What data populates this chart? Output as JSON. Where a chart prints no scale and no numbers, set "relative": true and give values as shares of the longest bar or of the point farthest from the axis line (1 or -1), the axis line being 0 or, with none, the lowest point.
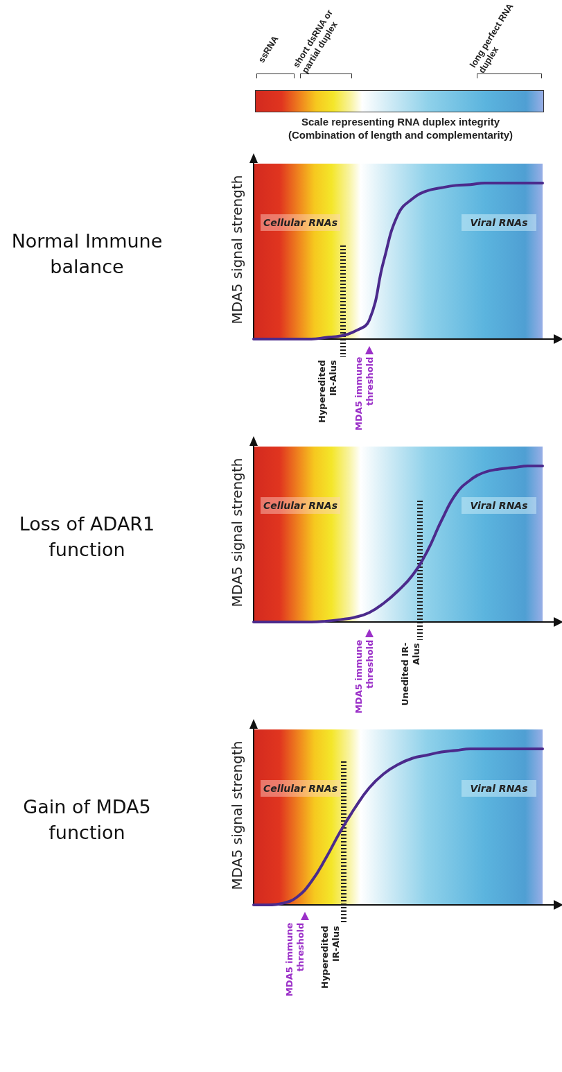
{
  "chart_data": [
    {
      "type": "other",
      "title": "Scale representing RNA duplex integrity",
      "subtitle": "(Combination of length and complementarity)",
      "annotations": [
        "ssRNA",
        "short dsRNA or partial duplex",
        "long perfect RNA duplex"
      ]
    },
    {
      "type": "line",
      "title": "Normal Immune balance",
      "ylabel": "MDA5 signal strength",
      "relative": true,
      "marker": "none",
      "line_style": "solid",
      "categories": [
        null,
        null,
        null,
        null,
        null,
        null,
        null,
        null,
        null,
        null,
        null,
        null,
        null,
        null,
        null,
        null,
        null,
        null,
        null,
        null,
        null
      ],
      "series": [
        {
          "color": "#4b2a8c",
          "values": [
            0,
            0,
            0,
            0,
            0,
            0.01,
            0.02,
            0.05,
            0.12,
            0.5,
            0.8,
            0.9,
            0.95,
            0.97,
            0.985,
            0.99,
            1,
            1,
            1,
            1,
            1
          ]
        }
      ],
      "annotations": [
        "Cellular RNAs",
        "Viral RNAs",
        "Hyperedited IR-Alus",
        "MDA5 immune threshold"
      ]
    },
    {
      "type": "line",
      "title": "Loss of ADAR1 function",
      "ylabel": "MDA5 signal strength",
      "relative": true,
      "marker": "none",
      "line_style": "solid",
      "categories": [
        null,
        null,
        null,
        null,
        null,
        null,
        null,
        null,
        null,
        null,
        null,
        null,
        null,
        null,
        null,
        null,
        null,
        null,
        null,
        null,
        null
      ],
      "series": [
        {
          "color": "#4b2a8c",
          "values": [
            0,
            0,
            0,
            0,
            0,
            0.005,
            0.015,
            0.03,
            0.06,
            0.12,
            0.2,
            0.3,
            0.45,
            0.65,
            0.82,
            0.91,
            0.96,
            0.98,
            0.99,
            1,
            1
          ]
        }
      ],
      "annotations": [
        "Cellular RNAs",
        "Viral RNAs",
        "Unedited IR-Alus",
        "MDA5 immune threshold"
      ]
    },
    {
      "type": "line",
      "title": "Gain of MDA5 function",
      "ylabel": "MDA5 signal strength",
      "relative": true,
      "marker": "none",
      "line_style": "solid",
      "categories": [
        null,
        null,
        null,
        null,
        null,
        null,
        null,
        null,
        null,
        null,
        null,
        null,
        null,
        null,
        null,
        null,
        null,
        null,
        null,
        null,
        null
      ],
      "series": [
        {
          "color": "#4b2a8c",
          "values": [
            0,
            0,
            0.01,
            0.05,
            0.15,
            0.3,
            0.47,
            0.62,
            0.75,
            0.84,
            0.9,
            0.94,
            0.96,
            0.98,
            0.99,
            1,
            1,
            1,
            1,
            1,
            1
          ]
        }
      ],
      "annotations": [
        "Cellular RNAs",
        "Viral RNAs",
        "Hyperedited IR-Alus",
        "MDA5 immune threshold"
      ]
    }
  ]
}
